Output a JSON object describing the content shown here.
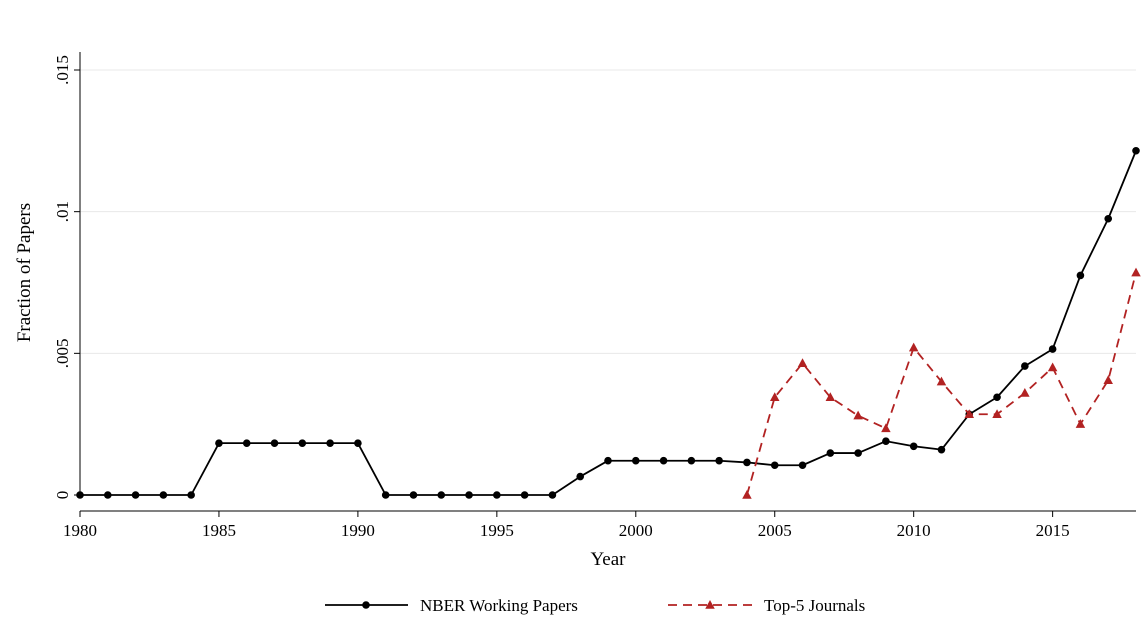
{
  "chart_data": {
    "type": "line",
    "title": "",
    "xlabel": "Year",
    "ylabel": "Fraction of Papers",
    "xlim": [
      1980,
      2018
    ],
    "ylim": [
      0,
      0.015
    ],
    "x_ticks": [
      1980,
      1985,
      1990,
      1995,
      2000,
      2005,
      2010,
      2015
    ],
    "x_tick_labels": [
      "1980",
      "1985",
      "1990",
      "1995",
      "2000",
      "2005",
      "2010",
      "2015"
    ],
    "y_ticks": [
      0,
      0.005,
      0.01,
      0.015
    ],
    "y_tick_labels": [
      "0",
      ".005",
      ".01",
      ".015"
    ],
    "grid": "horizontal",
    "legend_position": "bottom",
    "series": [
      {
        "name": "NBER Working Papers",
        "color": "#000000",
        "line_style": "solid",
        "marker": "circle",
        "points": [
          [
            1980,
            0
          ],
          [
            1981,
            0
          ],
          [
            1982,
            0
          ],
          [
            1983,
            0
          ],
          [
            1984,
            0
          ],
          [
            1985,
            0.00183
          ],
          [
            1986,
            0.00183
          ],
          [
            1987,
            0.00183
          ],
          [
            1988,
            0.00183
          ],
          [
            1989,
            0.00183
          ],
          [
            1990,
            0.00183
          ],
          [
            1991,
            0
          ],
          [
            1992,
            0
          ],
          [
            1993,
            0
          ],
          [
            1994,
            0
          ],
          [
            1995,
            0
          ],
          [
            1996,
            0
          ],
          [
            1997,
            0
          ],
          [
            1998,
            0.00065
          ],
          [
            1999,
            0.00121
          ],
          [
            2000,
            0.00121
          ],
          [
            2001,
            0.00121
          ],
          [
            2002,
            0.00121
          ],
          [
            2003,
            0.00121
          ],
          [
            2004,
            0.00115
          ],
          [
            2005,
            0.00105
          ],
          [
            2006,
            0.00105
          ],
          [
            2007,
            0.00148
          ],
          [
            2008,
            0.00148
          ],
          [
            2009,
            0.0019
          ],
          [
            2010,
            0.00172
          ],
          [
            2011,
            0.0016
          ],
          [
            2012,
            0.00285
          ],
          [
            2013,
            0.00345
          ],
          [
            2014,
            0.00455
          ],
          [
            2015,
            0.00515
          ],
          [
            2016,
            0.00775
          ],
          [
            2017,
            0.00975
          ],
          [
            2018,
            0.01215
          ]
        ]
      },
      {
        "name": "Top-5 Journals",
        "color": "#b22222",
        "line_style": "dashed",
        "marker": "triangle",
        "points": [
          [
            2004,
            0
          ],
          [
            2005,
            0.00345
          ],
          [
            2006,
            0.00465
          ],
          [
            2007,
            0.00345
          ],
          [
            2008,
            0.0028
          ],
          [
            2009,
            0.00235
          ],
          [
            2010,
            0.0052
          ],
          [
            2011,
            0.004
          ],
          [
            2012,
            0.00285
          ],
          [
            2013,
            0.00285
          ],
          [
            2014,
            0.0036
          ],
          [
            2015,
            0.0045
          ],
          [
            2016,
            0.0025
          ],
          [
            2017,
            0.00405
          ],
          [
            2018,
            0.00785
          ]
        ]
      }
    ]
  }
}
